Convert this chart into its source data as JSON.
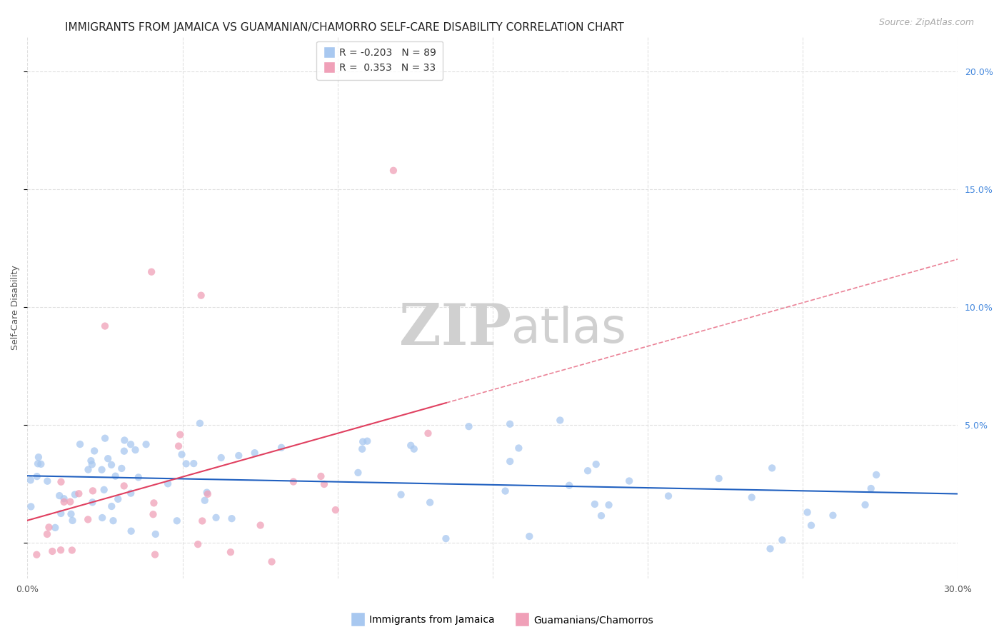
{
  "title": "IMMIGRANTS FROM JAMAICA VS GUAMANIAN/CHAMORRO SELF-CARE DISABILITY CORRELATION CHART",
  "source": "Source: ZipAtlas.com",
  "ylabel": "Self-Care Disability",
  "xlim": [
    0.0,
    0.3
  ],
  "ylim": [
    -0.015,
    0.215
  ],
  "legend_blue_R": "-0.203",
  "legend_blue_N": "89",
  "legend_pink_R": "0.353",
  "legend_pink_N": "33",
  "blue_color": "#a8c8f0",
  "pink_color": "#f0a0b8",
  "blue_line_color": "#2060c0",
  "pink_line_color": "#e04060",
  "marker_size": 55,
  "background_color": "#ffffff",
  "watermark_zip": "ZIP",
  "watermark_atlas": "atlas",
  "watermark_color": "#d0d0d0",
  "grid_color": "#e0e0e0",
  "title_fontsize": 11,
  "axis_label_fontsize": 9,
  "tick_fontsize": 9,
  "legend_fontsize": 10,
  "source_fontsize": 9,
  "right_tick_color": "#4488dd"
}
